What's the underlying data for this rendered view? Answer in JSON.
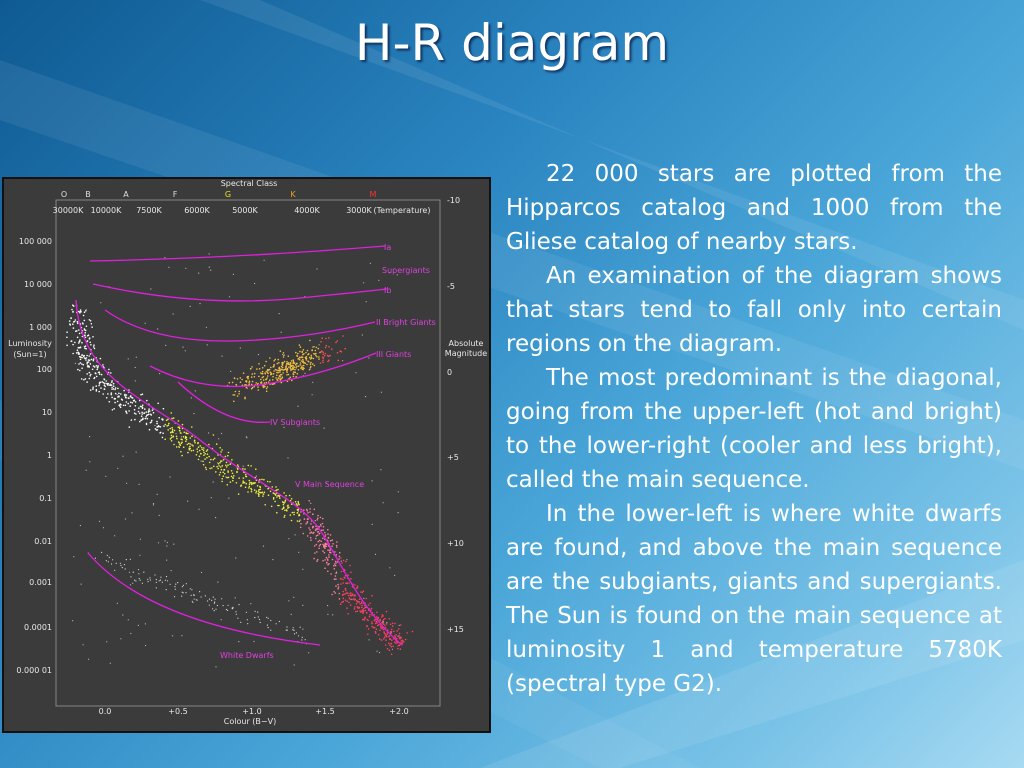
{
  "title": "H-R diagram",
  "paragraphs": [
    "22 000 stars are plotted from the Hipparcos catalog and 1000 from the Gliese catalog of nearby stars.",
    "An examination of the diagram shows that stars tend to fall only into certain regions on the diagram.",
    "The most predominant is the diagonal, going from the upper-left (hot and bright) to the lower-right (cooler and less bright), called the main sequence.",
    "In the lower-left is where white dwarfs are found, and above the main sequence are the subgiants, giants and supergiants. The Sun is found on the main sequence at luminosity 1 and temperature 5780K (spectral type G2)."
  ],
  "figure": {
    "spectral_class_label": "Spectral Class",
    "spectral_types": [
      "O",
      "B",
      "A",
      "F",
      "G",
      "K",
      "M"
    ],
    "temperatures": [
      "30000K",
      "10000K",
      "7500K",
      "6000K",
      "5000K",
      "4000K",
      "3000K",
      "(Temperature)"
    ],
    "luminosity_label": [
      "Luminosity",
      "(Sun=1)"
    ],
    "luminosity_ticks": [
      "100 000",
      "10 000",
      "1 000",
      "100",
      "10",
      "1",
      "0.1",
      "0.01",
      "0.001",
      "0.0001",
      "0.000 01"
    ],
    "magnitude_label": [
      "Absolute",
      "Magnitude"
    ],
    "magnitude_ticks": [
      "-10",
      "-5",
      "0",
      "+5",
      "+10",
      "+15"
    ],
    "colour_ticks": [
      "0.0",
      "+0.5",
      "+1.0",
      "+1.5",
      "+2.0"
    ],
    "colour_label": "Colour (B−V)",
    "regions": [
      "Ia",
      "Supergiants",
      "Ib",
      "II Bright Giants",
      "III    Giants",
      "IV  Subgiants",
      "V  Main Sequence",
      "White Dwarfs"
    ]
  }
}
